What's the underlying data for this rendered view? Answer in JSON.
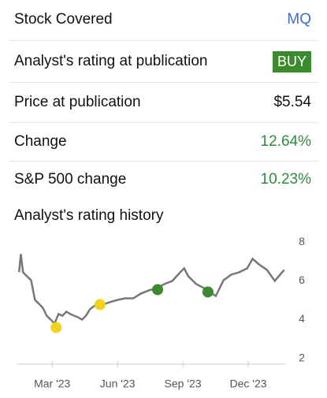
{
  "rows": [
    {
      "label": "Stock Covered",
      "value": "MQ"
    },
    {
      "label": "Analyst's rating at publication",
      "value": "BUY"
    },
    {
      "label": "Price at publication",
      "value": "$5.54"
    },
    {
      "label": "Change",
      "value": "12.64%"
    },
    {
      "label": "S&P 500 change",
      "value": "10.23%"
    }
  ],
  "history_title": "Analyst's rating history",
  "chart_data": {
    "type": "line",
    "series": [
      {
        "color": "#777777",
        "x": [
          0.48,
          0.56,
          0.66,
          0.84,
          1.03,
          1.21,
          1.39,
          1.57,
          1.75,
          1.93,
          2.11,
          2.29,
          2.47,
          2.65,
          2.83,
          3.01,
          3.19,
          3.37,
          3.55,
          3.73,
          3.91,
          4.2,
          4.45,
          4.64,
          5.0,
          5.36,
          5.72,
          6.08,
          6.44,
          6.8,
          7.16,
          7.52,
          7.88,
          8.06,
          8.25,
          8.61,
          8.97,
          9.33,
          9.51,
          9.87,
          10.23,
          10.59,
          10.95,
          11.2,
          11.49,
          11.86,
          12.22,
          12.4,
          12.65
        ],
        "values": [
          6.45,
          7.39,
          6.45,
          6.24,
          6.04,
          5.02,
          4.82,
          4.61,
          4.2,
          4.0,
          3.8,
          4.29,
          4.2,
          4.41,
          4.29,
          4.2,
          4.12,
          4.0,
          4.2,
          4.53,
          4.69,
          4.82,
          4.82,
          4.9,
          5.02,
          5.1,
          5.1,
          5.35,
          5.51,
          5.63,
          5.84,
          6.0,
          6.45,
          6.65,
          6.24,
          5.84,
          5.63,
          5.35,
          5.22,
          6.04,
          6.33,
          6.45,
          6.65,
          7.14,
          6.86,
          6.57,
          6.0,
          6.24,
          6.57
        ]
      },
      {
        "color": "#f0d31a",
        "mode": "markers",
        "x": [
          2.18,
          4.2
        ],
        "values": [
          3.59,
          4.78
        ]
      },
      {
        "color": "#3c8a2e",
        "mode": "markers",
        "x": [
          6.84,
          9.15
        ],
        "values": [
          5.55,
          5.43
        ]
      }
    ],
    "xlim": [
      0.4,
      12.7
    ],
    "xticks": [
      {
        "value": 2,
        "label": "Mar '23"
      },
      {
        "value": 5,
        "label": "Jun '23"
      },
      {
        "value": 8,
        "label": "Sep '23"
      },
      {
        "value": 11,
        "label": "Dec '23"
      }
    ],
    "ylim": [
      1.7,
      8.3
    ],
    "yticks": [
      2,
      4,
      6,
      8
    ]
  }
}
